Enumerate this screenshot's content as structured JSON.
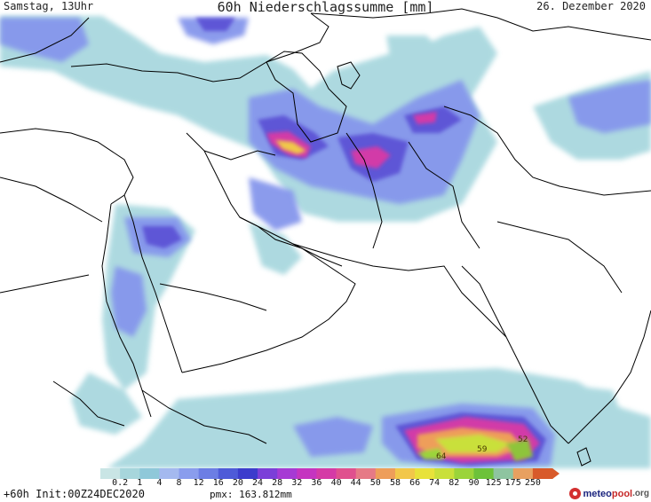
{
  "header": {
    "left": "Samstag, 13Uhr",
    "title": "60h Niederschlagssumme [mm]",
    "right": "26. Dezember 2020"
  },
  "footer": {
    "forecast": "+60h Init:00Z24DEC2020",
    "pmx": "pmx: 163.812mm"
  },
  "legend": {
    "labels": [
      "0.2",
      "1",
      "4",
      "8",
      "12",
      "16",
      "20",
      "24",
      "28",
      "32",
      "36",
      "40",
      "44",
      "50",
      "58",
      "66",
      "74",
      "82",
      "90",
      "125",
      "175",
      "250"
    ],
    "colors": [
      "#c9e5e5",
      "#a7d6dc",
      "#8fc8d9",
      "#a4b9ef",
      "#8a9ded",
      "#6c7ee4",
      "#4e5bd8",
      "#3c3ccc",
      "#7b3fd8",
      "#a63ad4",
      "#c534c0",
      "#d53aa6",
      "#e0508e",
      "#e67a86",
      "#ee9e5a",
      "#f2c74a",
      "#e8e23a",
      "#c9e03a",
      "#9bd43a",
      "#6dc23a",
      "#8ec4a0",
      "#e8a060",
      "#d85a2a"
    ]
  },
  "map_values": [
    "64",
    "59",
    "52"
  ],
  "logo": {
    "part1": "meteo",
    "part2": "pool",
    "suffix": ".org"
  }
}
